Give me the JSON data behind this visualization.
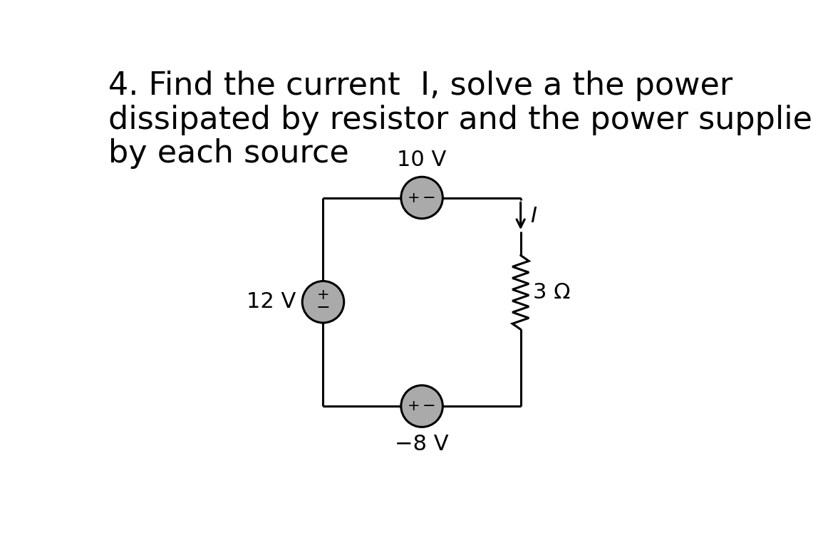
{
  "title_line1": "4. Find the current  I, solve a the power",
  "title_line2": "dissipated by resistor and the power supplied",
  "title_line3": "by each source",
  "bg_color": "#ffffff",
  "circuit_color": "#000000",
  "source_fill": "#aaaaaa",
  "label_10V": "10 V",
  "label_12V": "12 V",
  "label_neg8V": "−8 V",
  "label_3ohm": "3 Ω",
  "label_I": "I",
  "title_fontsize": 32,
  "label_fontsize": 22,
  "plus_minus_fontsize": 15
}
